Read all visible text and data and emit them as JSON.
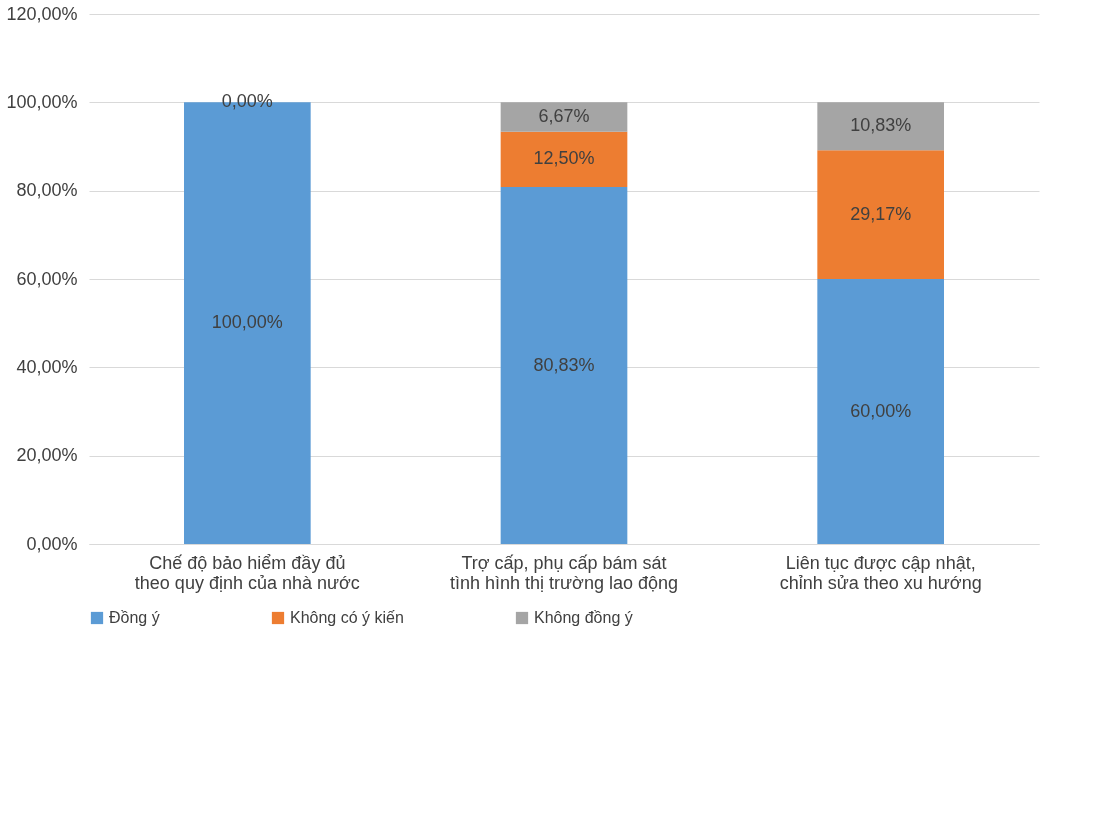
{
  "chart_data": {
    "type": "bar",
    "stacked": true,
    "categories": [
      "Chế độ bảo hiểm đầy đủ theo quy định của nhà nước",
      "Trợ cấp, phụ cấp bám sát tình hình thị trường lao động",
      "Liên tục được cập nhật, chỉnh sửa theo xu hướng"
    ],
    "series": [
      {
        "name": "Đồng ý",
        "color": "#5b9bd5",
        "values": [
          100,
          80.83,
          60
        ],
        "value_labels": [
          "100,00%",
          "80,83%",
          "60,00%"
        ]
      },
      {
        "name": "Không có ý kiến",
        "color": "#ed7d31",
        "values": [
          0,
          12.5,
          29.17
        ],
        "value_labels": [
          "0,00%",
          "12,50%",
          "29,17%"
        ]
      },
      {
        "name": "Không đồng ý",
        "color": "#a5a5a5",
        "values": [
          0,
          6.67,
          10.83
        ],
        "value_labels": [
          null,
          "6,67%",
          "10,83%"
        ]
      }
    ],
    "ylim": [
      0,
      120
    ],
    "yticks": [
      {
        "value": 0,
        "label": "0,00%"
      },
      {
        "value": 20,
        "label": "20,00%"
      },
      {
        "value": 40,
        "label": "40,00%"
      },
      {
        "value": 60,
        "label": "60,00%"
      },
      {
        "value": 80,
        "label": "80,00%"
      },
      {
        "value": 100,
        "label": "100,00%"
      },
      {
        "value": 120,
        "label": "120,00%"
      }
    ],
    "grid": "y",
    "legend": "bottom"
  }
}
